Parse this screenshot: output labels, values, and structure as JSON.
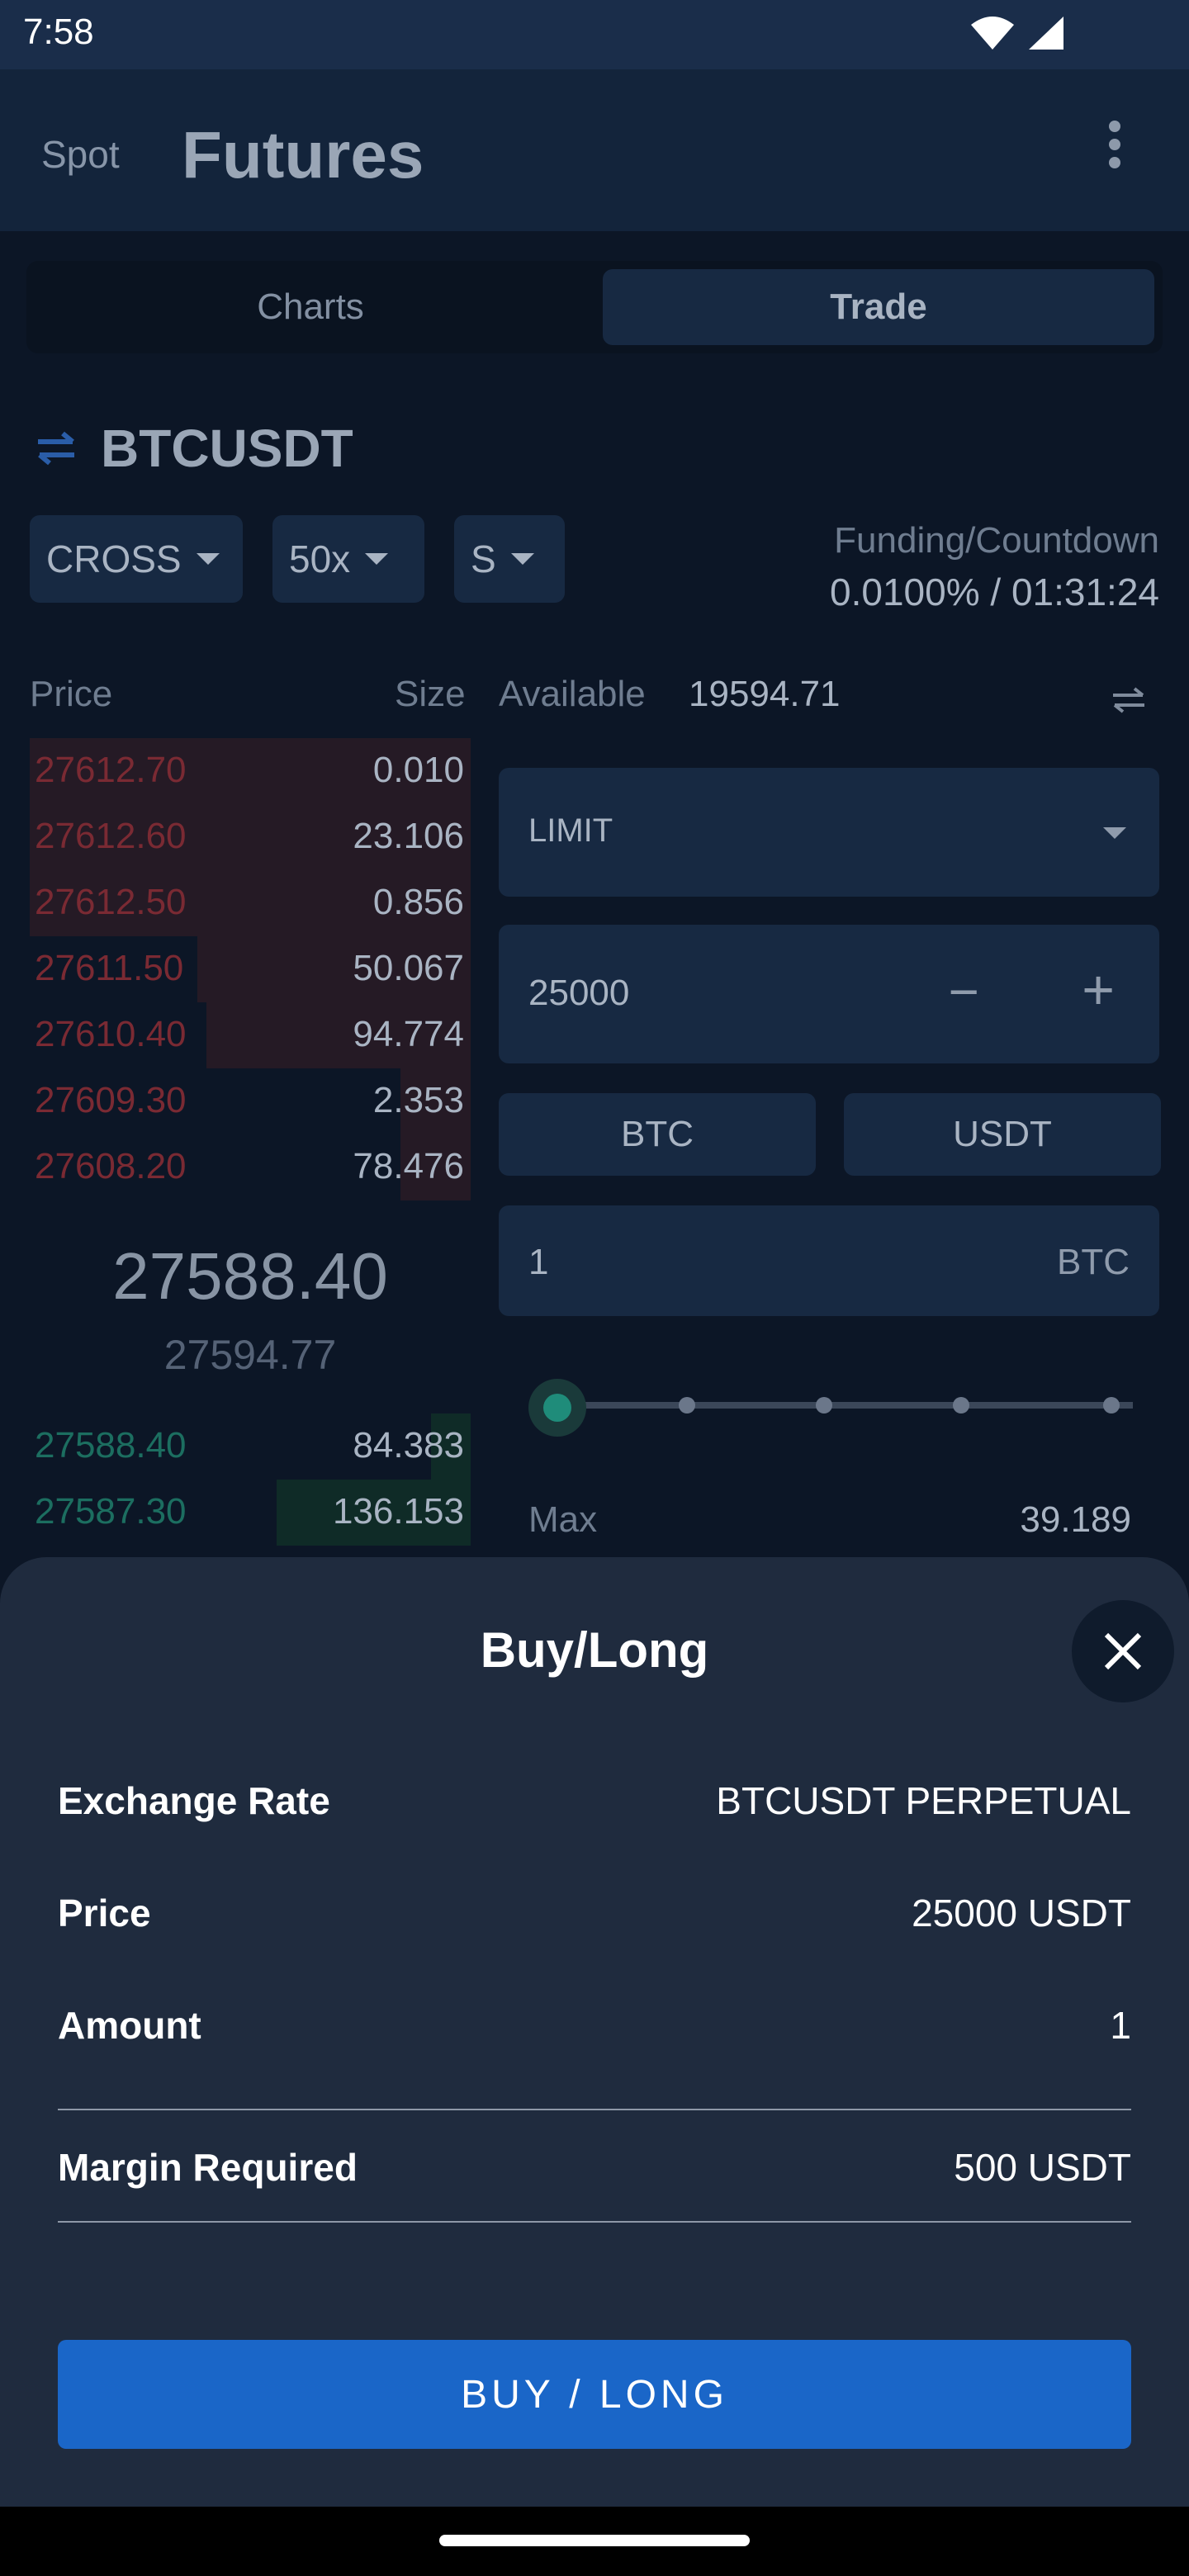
{
  "status_bar": {
    "time": "7:58",
    "wifi_icon": "wifi-icon",
    "signal_icon": "signal-icon"
  },
  "app_bar": {
    "spot_label": "Spot",
    "title": "Futures",
    "more_icon": "more-vert-icon"
  },
  "tabs": [
    {
      "label": "Charts"
    },
    {
      "label": "Trade",
      "selected": true
    }
  ],
  "pair": {
    "icon": "swap-arrows-icon",
    "symbol": "BTCUSDT"
  },
  "controls": {
    "margin_mode": "CROSS",
    "leverage": "50x",
    "size_mode": "S"
  },
  "funding": {
    "label": "Funding/Countdown",
    "value": "0.0100% / 01:31:24"
  },
  "order_book": {
    "price_header": "Price",
    "size_header": "Size",
    "asks": [
      {
        "price": "27612.70",
        "size": "0.010",
        "depth": 1.0
      },
      {
        "price": "27612.60",
        "size": "23.106",
        "depth": 1.0
      },
      {
        "price": "27612.50",
        "size": "0.856",
        "depth": 1.0
      },
      {
        "price": "27611.50",
        "size": "50.067",
        "depth": 0.62
      },
      {
        "price": "27610.40",
        "size": "94.774",
        "depth": 0.6
      },
      {
        "price": "27609.30",
        "size": "2.353",
        "depth": 0.16
      },
      {
        "price": "27608.20",
        "size": "78.476",
        "depth": 0.16
      }
    ],
    "last_price": "27588.40",
    "mark_price": "27594.77",
    "bids": [
      {
        "price": "27588.40",
        "size": "84.383",
        "depth": 0.09
      },
      {
        "price": "27587.30",
        "size": "136.153",
        "depth": 0.44
      }
    ]
  },
  "order_form": {
    "available_label": "Available",
    "available_value": "19594.71",
    "transfer_icon": "transfer-icon",
    "order_type": "LIMIT",
    "price_value": "25000",
    "minus_label": "−",
    "plus_label": "+",
    "unit_options": [
      "BTC",
      "USDT"
    ],
    "amount_value": "1",
    "amount_unit": "BTC",
    "slider_level": 0,
    "max_label": "Max",
    "max_value": "39.189"
  },
  "sheet": {
    "title": "Buy/Long",
    "close_icon": "close-icon",
    "rows": [
      {
        "label": "Exchange Rate",
        "value": "BTCUSDT PERPETUAL"
      },
      {
        "label": "Price",
        "value": "25000 USDT"
      },
      {
        "label": "Amount",
        "value": "1"
      },
      {
        "label": "Margin Required",
        "value": "500 USDT"
      }
    ],
    "button_label": "BUY / LONG"
  },
  "colors": {
    "accent": "#1a66c8",
    "ask": "#c0303f",
    "bid": "#1f8c7a",
    "sheet_bg": "#1f2b3e"
  }
}
